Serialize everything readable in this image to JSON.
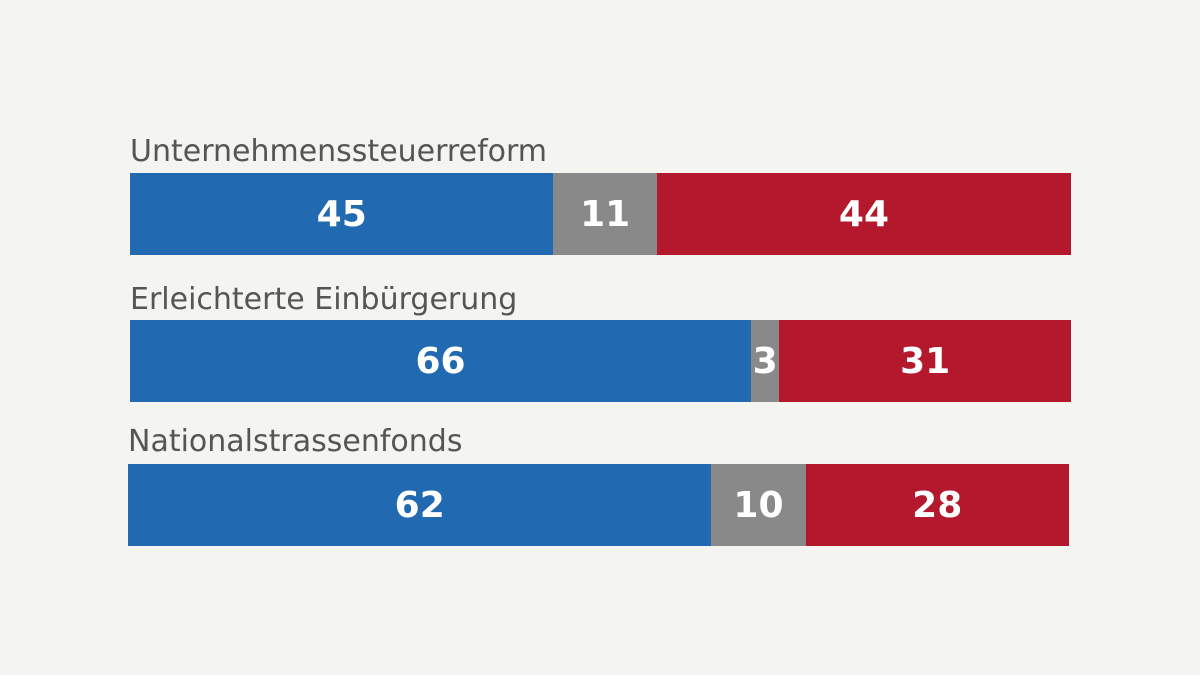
{
  "chart_data": {
    "type": "bar",
    "orientation": "horizontal-stacked-100",
    "series": [
      {
        "name": "blue",
        "color": "#2169b0"
      },
      {
        "name": "grey",
        "color": "#898989"
      },
      {
        "name": "red",
        "color": "#b4182c"
      }
    ],
    "rows": [
      {
        "label": "Unternehmenssteuerreform",
        "values": [
          45,
          11,
          44
        ]
      },
      {
        "label": "Erleichterte Einbürgerung",
        "values": [
          66,
          3,
          31
        ]
      },
      {
        "label": "Nationalstrassenfonds",
        "values": [
          62,
          10,
          28
        ]
      }
    ],
    "xlim": [
      0,
      100
    ]
  }
}
